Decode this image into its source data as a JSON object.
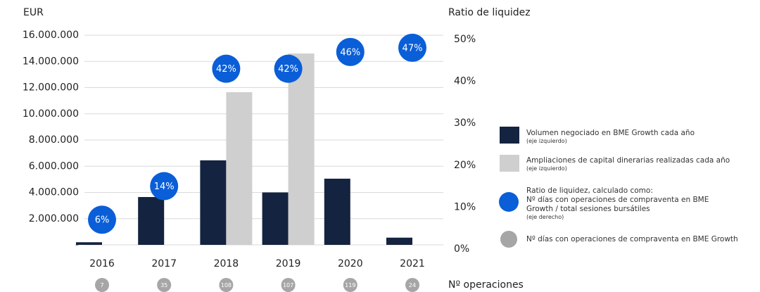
{
  "chart_data": {
    "type": "bar",
    "y_label": "EUR",
    "y2_label": "Ratio de liquidez",
    "count_label": "Nº operaciones",
    "categories": [
      "2016",
      "2017",
      "2018",
      "2019",
      "2020",
      "2021"
    ],
    "series": [
      {
        "name": "Volumen negociado en BME Growth cada año",
        "note": "(eje izquierdo)",
        "color": "#14233f",
        "values": [
          200000,
          3650000,
          6450000,
          4000000,
          5050000,
          550000
        ]
      },
      {
        "name": "Ampliaciones de capital dinerarias realizadas cada año",
        "note": "(eje izquierdo)",
        "color": "#cfcfcf",
        "values": [
          0,
          0,
          11650000,
          14600000,
          0,
          0
        ]
      },
      {
        "name": "Ratio de liquidez, calculado como:",
        "description": "Nº días con operaciones de compraventa en BME Growth / total sesiones bursátiles",
        "note": "(eje derecho)",
        "color": "#0a5ed7",
        "axis": "y2",
        "values": [
          6,
          14,
          42,
          42,
          46,
          47
        ],
        "value_labels": [
          "6%",
          "14%",
          "42%",
          "42%",
          "46%",
          "47%"
        ]
      },
      {
        "name": "Nº días con operaciones de compraventa en BME Growth",
        "color": "#a6a6a6",
        "values": [
          7,
          35,
          108,
          107,
          119,
          24
        ]
      }
    ],
    "ylim": [
      0,
      16000000
    ],
    "yticks": [
      {
        "value": 0,
        "label": "-"
      },
      {
        "value": 2000000,
        "label": "2.000.000"
      },
      {
        "value": 4000000,
        "label": "4.000.000"
      },
      {
        "value": 6000000,
        "label": "6.000.000"
      },
      {
        "value": 8000000,
        "label": "8.000.000"
      },
      {
        "value": 10000000,
        "label": "10.000.000"
      },
      {
        "value": 12000000,
        "label": "12.000.000"
      },
      {
        "value": 14000000,
        "label": "14.000.000"
      },
      {
        "value": 16000000,
        "label": "16.000.000"
      }
    ],
    "y2lim": [
      0,
      50
    ],
    "y2ticks": [
      {
        "value": 0,
        "label": "0%"
      },
      {
        "value": 10,
        "label": "10%"
      },
      {
        "value": 20,
        "label": "20%"
      },
      {
        "value": 30,
        "label": "30%"
      },
      {
        "value": 40,
        "label": "40%"
      },
      {
        "value": 50,
        "label": "50%"
      }
    ],
    "grid": true
  }
}
